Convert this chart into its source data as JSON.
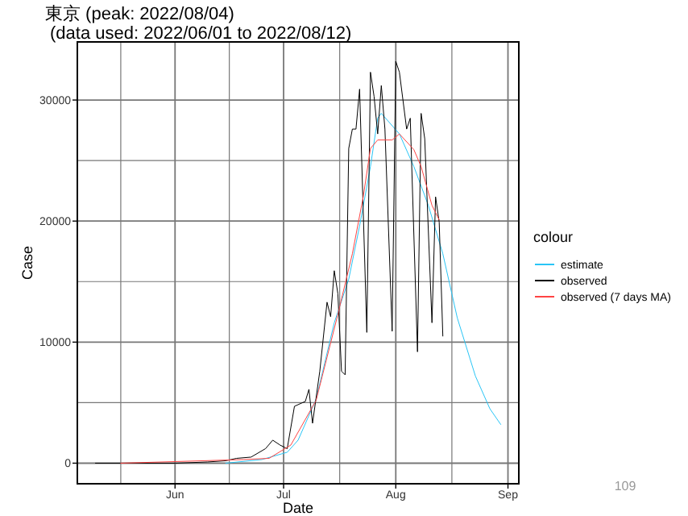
{
  "chart_data": {
    "type": "line",
    "title": "東京 (peak: 2022/08/04)",
    "subtitle": "(data used: 2022/06/01 to 2022/08/12)",
    "xlabel": "Date",
    "ylabel": "Case",
    "legend_title": "colour",
    "annotations": [
      "109"
    ],
    "xlim": [
      "2022-05-05",
      "2022-09-04"
    ],
    "xticks": [
      {
        "value": "2022-06-01",
        "label": "Jun"
      },
      {
        "value": "2022-07-01",
        "label": "Jul"
      },
      {
        "value": "2022-08-01",
        "label": "Aug"
      },
      {
        "value": "2022-09-01",
        "label": "Sep"
      }
    ],
    "ylim": [
      -1700,
      34800
    ],
    "yticks": [
      0,
      10000,
      20000,
      30000
    ],
    "grid": true,
    "legend": "right",
    "series": [
      {
        "name": "estimate",
        "color": "#29c5f6",
        "x": [
          "2022-06-15",
          "2022-06-25",
          "2022-07-02",
          "2022-07-05",
          "2022-07-10",
          "2022-07-15",
          "2022-07-19",
          "2022-07-22",
          "2022-07-25",
          "2022-07-27",
          "2022-07-28",
          "2022-08-02",
          "2022-08-06",
          "2022-08-10",
          "2022-08-14",
          "2022-08-18",
          "2022-08-23",
          "2022-08-27",
          "2022-08-30"
        ],
        "values": [
          0,
          300,
          900,
          1900,
          5300,
          11600,
          15200,
          19600,
          24500,
          28500,
          28900,
          27200,
          24500,
          21300,
          17300,
          12000,
          7200,
          4500,
          3200
        ]
      },
      {
        "name": "observed",
        "color": "#000000",
        "x": [
          "2022-05-10",
          "2022-06-01",
          "2022-06-10",
          "2022-06-15",
          "2022-06-18",
          "2022-06-22",
          "2022-06-26",
          "2022-06-28",
          "2022-06-30",
          "2022-07-02",
          "2022-07-04",
          "2022-07-07",
          "2022-07-08",
          "2022-07-09",
          "2022-07-11",
          "2022-07-13",
          "2022-07-14",
          "2022-07-15",
          "2022-07-16",
          "2022-07-17",
          "2022-07-18",
          "2022-07-19",
          "2022-07-20",
          "2022-07-21",
          "2022-07-22",
          "2022-07-24",
          "2022-07-25",
          "2022-07-26",
          "2022-07-27",
          "2022-07-28",
          "2022-07-29",
          "2022-07-31",
          "2022-08-01",
          "2022-08-02",
          "2022-08-04",
          "2022-08-05",
          "2022-08-07",
          "2022-08-08",
          "2022-08-09",
          "2022-08-11",
          "2022-08-12",
          "2022-08-13",
          "2022-08-14"
        ],
        "values": [
          0,
          0,
          100,
          200,
          400,
          500,
          1200,
          1900,
          1500,
          1200,
          4700,
          5100,
          6100,
          3300,
          7600,
          13300,
          12100,
          15900,
          14000,
          7600,
          7300,
          26000,
          27600,
          27600,
          30900,
          10800,
          32300,
          30300,
          27200,
          31200,
          27600,
          10900,
          33200,
          32300,
          27600,
          28500,
          9200,
          28900,
          26800,
          11600,
          22000,
          19900,
          10500
        ]
      },
      {
        "name": "observed (7 days MA)",
        "color": "#ff4444",
        "x": [
          "2022-05-17",
          "2022-06-20",
          "2022-06-27",
          "2022-07-03",
          "2022-07-10",
          "2022-07-16",
          "2022-07-20",
          "2022-07-23",
          "2022-07-25",
          "2022-07-27",
          "2022-07-31",
          "2022-08-02",
          "2022-08-06",
          "2022-08-08",
          "2022-08-11",
          "2022-08-13"
        ],
        "values": [
          0,
          300,
          400,
          1500,
          5200,
          12300,
          17300,
          22000,
          26000,
          26700,
          26700,
          27200,
          25900,
          24500,
          21300,
          20100
        ]
      }
    ]
  }
}
